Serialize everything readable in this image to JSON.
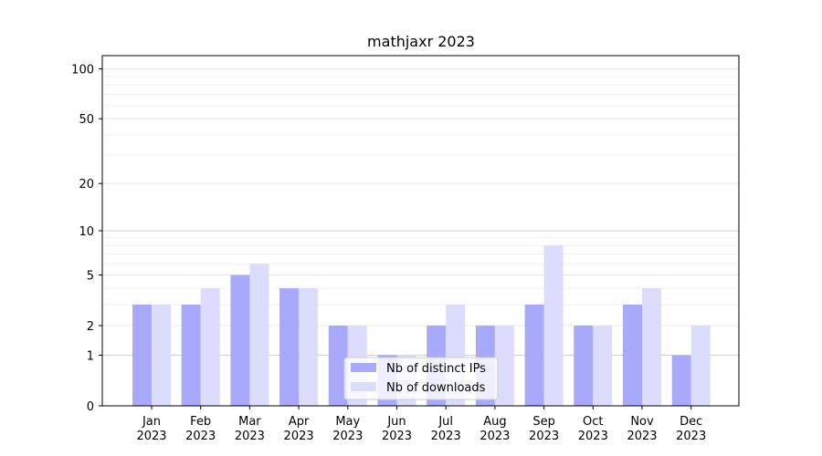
{
  "chart_data": {
    "type": "bar",
    "title": "mathjaxr 2023",
    "xlabel": "",
    "ylabel": "",
    "y_scale": "symlog",
    "ylim": [
      0,
      120
    ],
    "yticks": [
      0,
      1,
      2,
      5,
      10,
      20,
      50,
      100
    ],
    "ytick_labels": [
      "0",
      "1",
      "2",
      "5",
      "10",
      "20",
      "50",
      "100"
    ],
    "categories": [
      "Jan\n2023",
      "Feb\n2023",
      "Mar\n2023",
      "Apr\n2023",
      "May\n2023",
      "Jun\n2023",
      "Jul\n2023",
      "Aug\n2023",
      "Sep\n2023",
      "Oct\n2023",
      "Nov\n2023",
      "Dec\n2023"
    ],
    "series": [
      {
        "name": "Nb of distinct IPs",
        "color": "#a9a9fb",
        "values": [
          3,
          3,
          5,
          4,
          2,
          1,
          2,
          2,
          3,
          2,
          3,
          1
        ]
      },
      {
        "name": "Nb of downloads",
        "color": "#dcdcfc",
        "values": [
          3,
          4,
          6,
          4,
          2,
          1,
          3,
          2,
          8,
          2,
          4,
          2
        ]
      }
    ],
    "grid": true,
    "legend_position": "bottom-center"
  }
}
